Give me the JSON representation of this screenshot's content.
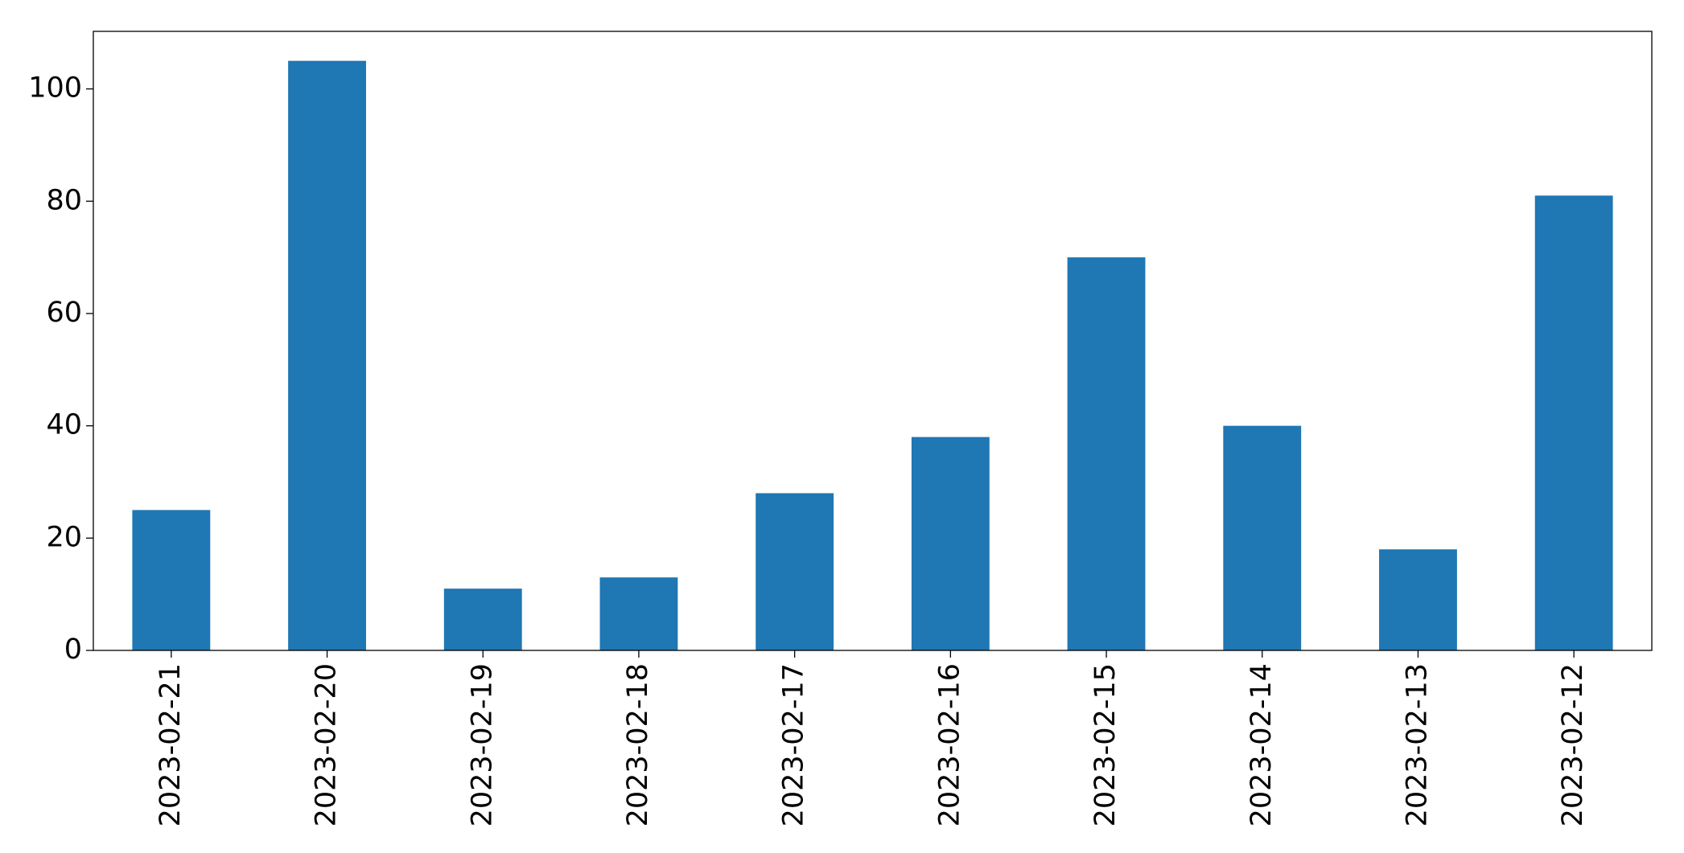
{
  "chart_data": {
    "type": "bar",
    "categories": [
      "2023-02-21",
      "2023-02-20",
      "2023-02-19",
      "2023-02-18",
      "2023-02-17",
      "2023-02-16",
      "2023-02-15",
      "2023-02-14",
      "2023-02-13",
      "2023-02-12"
    ],
    "values": [
      25,
      105,
      11,
      13,
      28,
      38,
      70,
      40,
      18,
      81
    ],
    "color": "#1f77b4",
    "ylim": [
      0,
      110.25
    ],
    "yticks": [
      0,
      20,
      40,
      60,
      80,
      100
    ],
    "grid": false
  }
}
